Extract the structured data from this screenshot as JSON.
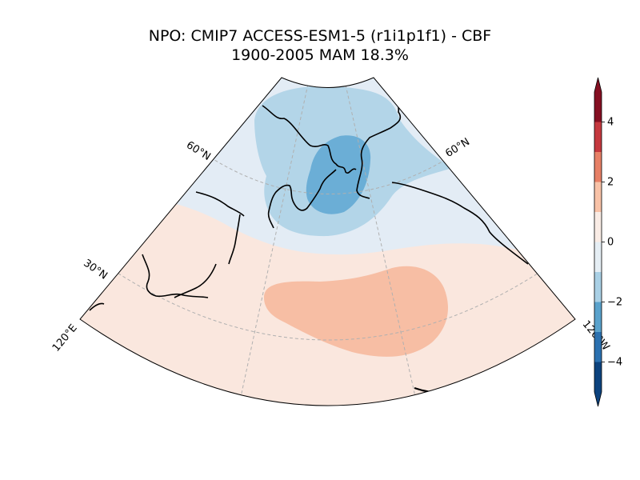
{
  "title": {
    "line1": "NPO: CMIP7 ACCESS-ESM1-5 (r1i1p1f1) - CBF",
    "line2": "1900-2005 MAM 18.3%"
  },
  "map": {
    "projection": "polar sector (North Pacific)",
    "lat_labels": [
      "60°N",
      "60°N",
      "30°N"
    ],
    "lon_labels": [
      "120°E",
      "120°W"
    ],
    "colors": {
      "pos_1": "#fae7de",
      "pos_2": "#f7bea4",
      "neg_1": "#e3ecf5",
      "neg_2": "#b3d5e8",
      "neg_3": "#6baed6",
      "land_outline": "#000000",
      "gridline": "#b0b0b0"
    },
    "pattern": {
      "positive_center": "subtropical North Pacific",
      "negative_center": "Bering Strait / Kamchatka"
    }
  },
  "colorbar": {
    "ticks": [
      "4",
      "2",
      "0",
      "−2",
      "−4"
    ],
    "tick_values": [
      4,
      2,
      0,
      -2,
      -4
    ],
    "range": [
      -5,
      5
    ],
    "levels": [
      {
        "lo": 4,
        "hi": 5,
        "color": "#850f22"
      },
      {
        "lo": 3,
        "hi": 4,
        "color": "#c5383e"
      },
      {
        "lo": 2,
        "hi": 3,
        "color": "#e78066"
      },
      {
        "lo": 1,
        "hi": 2,
        "color": "#f8c2a7"
      },
      {
        "lo": 0,
        "hi": 1,
        "color": "#f9ece5"
      },
      {
        "lo": -1,
        "hi": 0,
        "color": "#e5eef4"
      },
      {
        "lo": -2,
        "hi": -1,
        "color": "#a9d0e5"
      },
      {
        "lo": -3,
        "hi": -2,
        "color": "#5aa2cc"
      },
      {
        "lo": -4,
        "hi": -3,
        "color": "#2b71b0"
      },
      {
        "lo": -5,
        "hi": -4,
        "color": "#0c427e"
      }
    ],
    "extend": "both"
  }
}
